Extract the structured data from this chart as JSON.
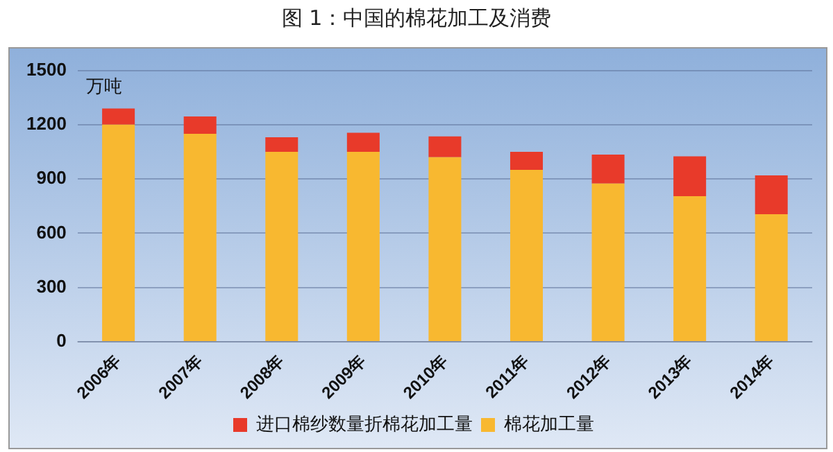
{
  "chart_data": {
    "type": "bar",
    "title": "图 1：中国的棉花加工及消费",
    "ylabel": "万吨",
    "categories": [
      "2006年",
      "2007年",
      "2008年",
      "2009年",
      "2010年",
      "2011年",
      "2012年",
      "2013年",
      "2014年"
    ],
    "series": [
      {
        "name": "棉花加工量",
        "color": "#f8b830",
        "values": [
          1200,
          1150,
          1050,
          1050,
          1020,
          950,
          875,
          805,
          705
        ]
      },
      {
        "name": "进口棉纱数量折棉花加工量",
        "color": "#e83a2a",
        "values": [
          90,
          95,
          80,
          105,
          115,
          100,
          160,
          220,
          215
        ]
      }
    ],
    "stacked": true,
    "ylim": [
      0,
      1500
    ],
    "yticks": [
      0,
      300,
      600,
      900,
      1200,
      1500
    ],
    "grid": "y",
    "legend": "bottom"
  }
}
